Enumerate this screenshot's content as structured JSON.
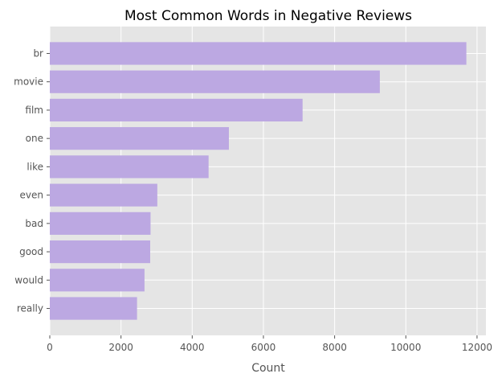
{
  "chart_data": {
    "type": "bar",
    "orientation": "horizontal",
    "title": "Most Common Words in Negative Reviews",
    "xlabel": "Count",
    "ylabel": "",
    "categories": [
      "br",
      "movie",
      "film",
      "one",
      "like",
      "even",
      "bad",
      "good",
      "would",
      "really"
    ],
    "values": [
      11700,
      9270,
      7100,
      5030,
      4460,
      3020,
      2830,
      2820,
      2660,
      2450
    ],
    "xlim": [
      0,
      12250
    ],
    "xticks": [
      0,
      2000,
      4000,
      6000,
      8000,
      10000,
      12000
    ],
    "grid": true,
    "legend": "none",
    "colors": {
      "bar": "#bca8e2",
      "plot_background": "#e5e5e5",
      "grid": "#ffffff",
      "tick_text": "#555555"
    }
  }
}
